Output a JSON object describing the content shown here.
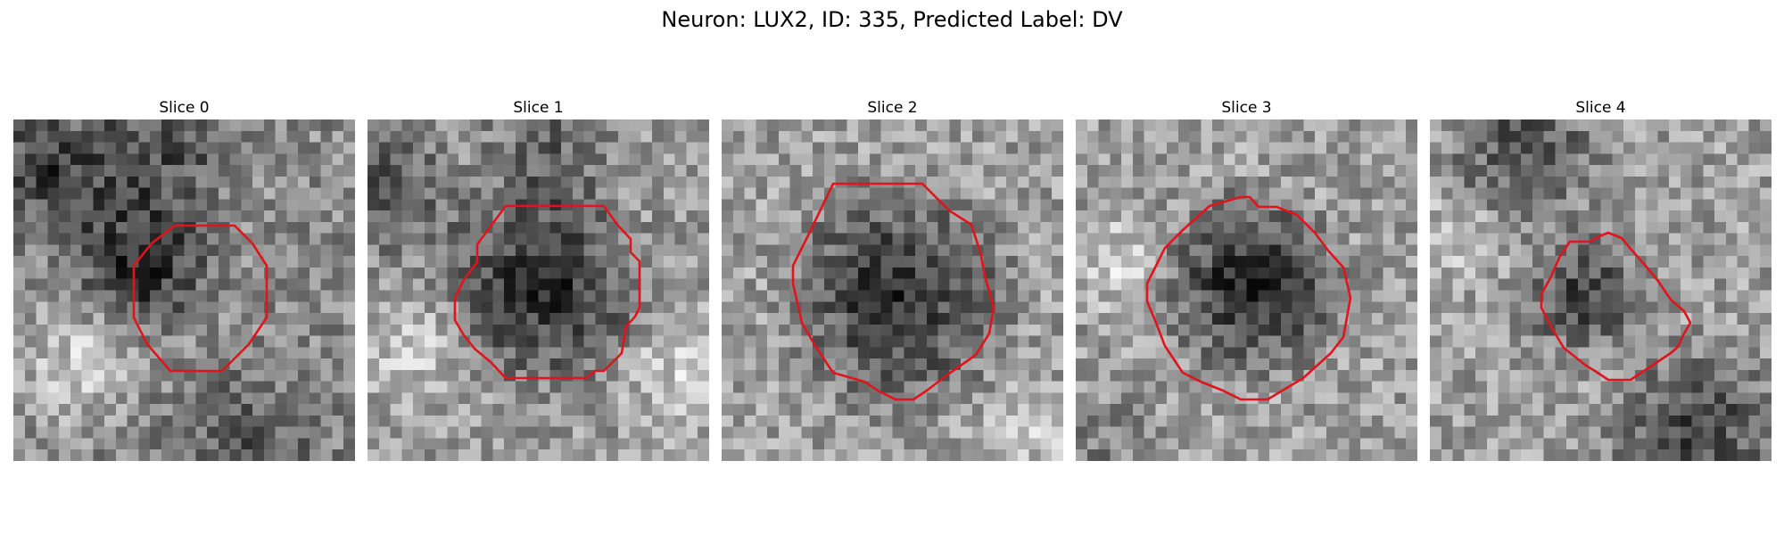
{
  "figure": {
    "title": "Neuron: LUX2, ID: 335, Predicted Label: DV"
  },
  "panels": [
    {
      "title": "Slice 0"
    },
    {
      "title": "Slice 1"
    },
    {
      "title": "Slice 2"
    },
    {
      "title": "Slice 3"
    },
    {
      "title": "Slice 4"
    }
  ],
  "colors": {
    "contour": "#e0141c"
  }
}
